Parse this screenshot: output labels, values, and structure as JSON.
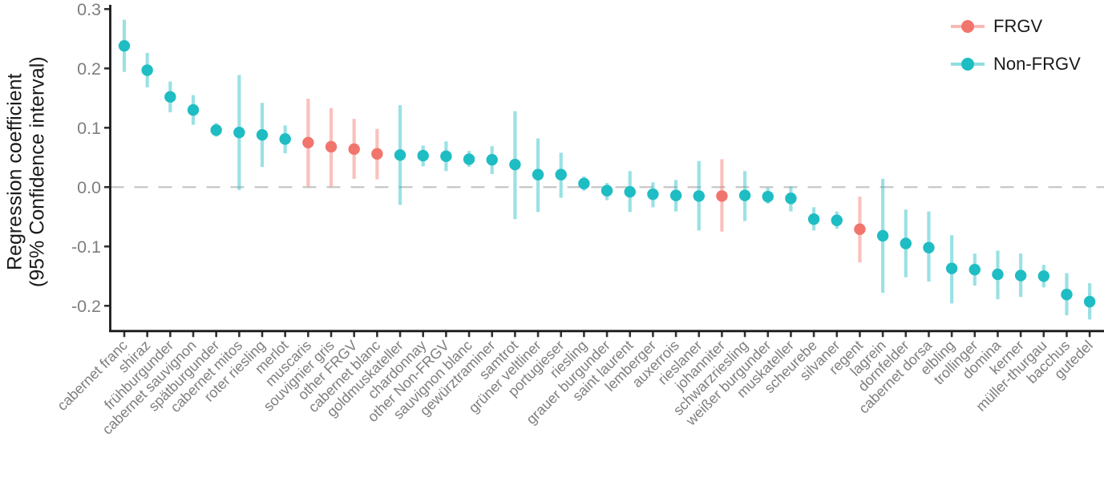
{
  "chart_data": {
    "type": "pointrange",
    "title": "",
    "xlabel": "",
    "ylabel_line1": "Regression coefficient",
    "ylabel_line2": "(95% Confidence interval)",
    "y_tick_labels": [
      "0.3",
      "0.2",
      "0.1",
      "0.0",
      "-0.1",
      "-0.2"
    ],
    "ylim": [
      -0.245,
      0.31
    ],
    "zero_reference_line": 0.0,
    "grid": "off",
    "legend_position": "top-right",
    "legend": [
      {
        "label": "FRGV",
        "color": "#F1756C"
      },
      {
        "label": "Non-FRGV",
        "color": "#1EBDC3"
      }
    ],
    "group_colors": {
      "FRGV": "#F1756C",
      "Non-FRGV": "#1EBDC3"
    },
    "points": [
      {
        "variety": "cabernet franc",
        "group": "Non-FRGV",
        "estimate": 0.238,
        "ci_low": 0.194,
        "ci_high": 0.282
      },
      {
        "variety": "shiraz",
        "group": "Non-FRGV",
        "estimate": 0.197,
        "ci_low": 0.168,
        "ci_high": 0.226
      },
      {
        "variety": "frühburgunder",
        "group": "Non-FRGV",
        "estimate": 0.152,
        "ci_low": 0.126,
        "ci_high": 0.178
      },
      {
        "variety": "cabernet sauvignon",
        "group": "Non-FRGV",
        "estimate": 0.13,
        "ci_low": 0.105,
        "ci_high": 0.155
      },
      {
        "variety": "spätburgunder",
        "group": "Non-FRGV",
        "estimate": 0.096,
        "ci_low": 0.085,
        "ci_high": 0.108
      },
      {
        "variety": "cabernet mitos",
        "group": "Non-FRGV",
        "estimate": 0.092,
        "ci_low": -0.005,
        "ci_high": 0.189
      },
      {
        "variety": "roter riesling",
        "group": "Non-FRGV",
        "estimate": 0.088,
        "ci_low": 0.034,
        "ci_high": 0.142
      },
      {
        "variety": "merlot",
        "group": "Non-FRGV",
        "estimate": 0.081,
        "ci_low": 0.057,
        "ci_high": 0.104
      },
      {
        "variety": "muscaris",
        "group": "FRGV",
        "estimate": 0.075,
        "ci_low": 0.001,
        "ci_high": 0.149
      },
      {
        "variety": "souvignier gris",
        "group": "FRGV",
        "estimate": 0.068,
        "ci_low": 0.001,
        "ci_high": 0.133
      },
      {
        "variety": "other FRGV",
        "group": "FRGV",
        "estimate": 0.064,
        "ci_low": 0.014,
        "ci_high": 0.115
      },
      {
        "variety": "cabernet blanc",
        "group": "FRGV",
        "estimate": 0.056,
        "ci_low": 0.013,
        "ci_high": 0.098
      },
      {
        "variety": "goldmuskateller",
        "group": "Non-FRGV",
        "estimate": 0.054,
        "ci_low": -0.03,
        "ci_high": 0.138
      },
      {
        "variety": "chardonnay",
        "group": "Non-FRGV",
        "estimate": 0.053,
        "ci_low": 0.035,
        "ci_high": 0.07
      },
      {
        "variety": "other Non-FRGV",
        "group": "Non-FRGV",
        "estimate": 0.052,
        "ci_low": 0.027,
        "ci_high": 0.077
      },
      {
        "variety": "sauvignon blanc",
        "group": "Non-FRGV",
        "estimate": 0.047,
        "ci_low": 0.034,
        "ci_high": 0.061
      },
      {
        "variety": "gewürztraminer",
        "group": "Non-FRGV",
        "estimate": 0.046,
        "ci_low": 0.022,
        "ci_high": 0.069
      },
      {
        "variety": "samtrot",
        "group": "Non-FRGV",
        "estimate": 0.038,
        "ci_low": -0.054,
        "ci_high": 0.128
      },
      {
        "variety": "grüner veltliner",
        "group": "Non-FRGV",
        "estimate": 0.021,
        "ci_low": -0.042,
        "ci_high": 0.082
      },
      {
        "variety": "portugieser",
        "group": "Non-FRGV",
        "estimate": 0.021,
        "ci_low": -0.018,
        "ci_high": 0.058
      },
      {
        "variety": "riesling",
        "group": "Non-FRGV",
        "estimate": 0.006,
        "ci_low": -0.006,
        "ci_high": 0.018
      },
      {
        "variety": "grauer burgunder",
        "group": "Non-FRGV",
        "estimate": -0.006,
        "ci_low": -0.022,
        "ci_high": 0.007
      },
      {
        "variety": "saint laurent",
        "group": "Non-FRGV",
        "estimate": -0.008,
        "ci_low": -0.042,
        "ci_high": 0.027
      },
      {
        "variety": "lemberger",
        "group": "Non-FRGV",
        "estimate": -0.012,
        "ci_low": -0.034,
        "ci_high": 0.008
      },
      {
        "variety": "auxerrois",
        "group": "Non-FRGV",
        "estimate": -0.014,
        "ci_low": -0.041,
        "ci_high": 0.012
      },
      {
        "variety": "rieslaner",
        "group": "Non-FRGV",
        "estimate": -0.015,
        "ci_low": -0.073,
        "ci_high": 0.044
      },
      {
        "variety": "johanniter",
        "group": "FRGV",
        "estimate": -0.015,
        "ci_low": -0.075,
        "ci_high": 0.047
      },
      {
        "variety": "schwarzriesling",
        "group": "Non-FRGV",
        "estimate": -0.014,
        "ci_low": -0.057,
        "ci_high": 0.027
      },
      {
        "variety": "weißer burgunder",
        "group": "Non-FRGV",
        "estimate": -0.016,
        "ci_low": -0.028,
        "ci_high": -0.001
      },
      {
        "variety": "muskateller",
        "group": "Non-FRGV",
        "estimate": -0.019,
        "ci_low": -0.041,
        "ci_high": 0.001
      },
      {
        "variety": "scheurebe",
        "group": "Non-FRGV",
        "estimate": -0.054,
        "ci_low": -0.073,
        "ci_high": -0.034
      },
      {
        "variety": "silvaner",
        "group": "Non-FRGV",
        "estimate": -0.056,
        "ci_low": -0.07,
        "ci_high": -0.041
      },
      {
        "variety": "regent",
        "group": "FRGV",
        "estimate": -0.071,
        "ci_low": -0.127,
        "ci_high": -0.016
      },
      {
        "variety": "lagrein",
        "group": "Non-FRGV",
        "estimate": -0.082,
        "ci_low": -0.178,
        "ci_high": 0.014
      },
      {
        "variety": "dornfelder",
        "group": "Non-FRGV",
        "estimate": -0.095,
        "ci_low": -0.152,
        "ci_high": -0.038
      },
      {
        "variety": "cabernet dorsa",
        "group": "Non-FRGV",
        "estimate": -0.102,
        "ci_low": -0.159,
        "ci_high": -0.041
      },
      {
        "variety": "elbling",
        "group": "Non-FRGV",
        "estimate": -0.137,
        "ci_low": -0.196,
        "ci_high": -0.081
      },
      {
        "variety": "trollinger",
        "group": "Non-FRGV",
        "estimate": -0.139,
        "ci_low": -0.166,
        "ci_high": -0.112
      },
      {
        "variety": "domina",
        "group": "Non-FRGV",
        "estimate": -0.147,
        "ci_low": -0.189,
        "ci_high": -0.107
      },
      {
        "variety": "kerner",
        "group": "Non-FRGV",
        "estimate": -0.149,
        "ci_low": -0.185,
        "ci_high": -0.112
      },
      {
        "variety": "müller-thurgau",
        "group": "Non-FRGV",
        "estimate": -0.15,
        "ci_low": -0.169,
        "ci_high": -0.131
      },
      {
        "variety": "bacchus",
        "group": "Non-FRGV",
        "estimate": -0.181,
        "ci_low": -0.216,
        "ci_high": -0.145
      },
      {
        "variety": "gutedel",
        "group": "Non-FRGV",
        "estimate": -0.193,
        "ci_low": -0.223,
        "ci_high": -0.162
      }
    ],
    "style_colors": {
      "axis": "#1a1a1a",
      "tick_label": "#7e7e7e",
      "zero_line": "#c4c4c4"
    }
  }
}
